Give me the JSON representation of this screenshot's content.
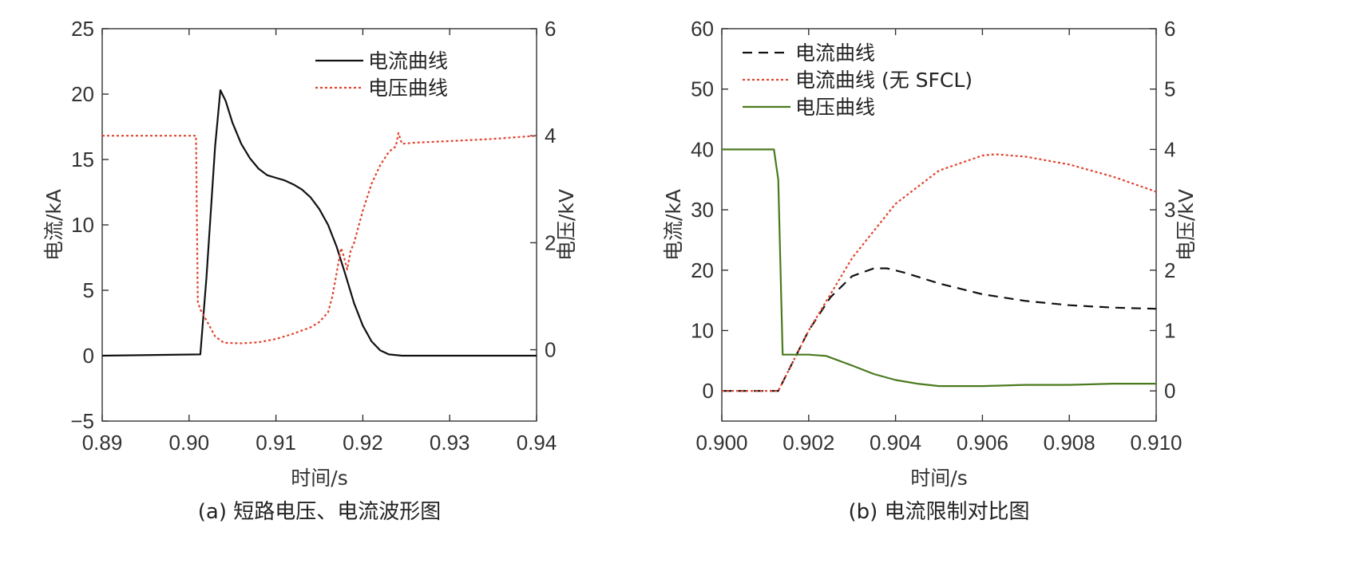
{
  "chart_data": [
    {
      "type": "line",
      "caption": "(a) 短路电压、电流波形图",
      "xlabel": "时间/s",
      "ylabel": "电流/kA",
      "y2label": "电压/kV",
      "xlim": [
        0.89,
        0.94
      ],
      "ylim": [
        -5,
        25
      ],
      "y2lim": [
        -1.333,
        6
      ],
      "xticks": [
        "0.89",
        "0.90",
        "0.91",
        "0.92",
        "0.93",
        "0.94"
      ],
      "yticks": [
        "−5",
        "0",
        "5",
        "10",
        "15",
        "20",
        "25"
      ],
      "y2ticks": [
        "0",
        "2",
        "4",
        "6"
      ],
      "legend_position": "top-right",
      "series": [
        {
          "name": "电流曲线",
          "axis": "left",
          "color": "#111111",
          "dash": "solid",
          "x": [
            0.89,
            0.9013,
            0.902,
            0.903,
            0.9036,
            0.9042,
            0.905,
            0.906,
            0.907,
            0.908,
            0.909,
            0.91,
            0.911,
            0.912,
            0.913,
            0.914,
            0.915,
            0.916,
            0.917,
            0.918,
            0.919,
            0.92,
            0.921,
            0.922,
            0.923,
            0.9245,
            0.94
          ],
          "y": [
            0,
            0.1,
            6.0,
            16.0,
            20.3,
            19.5,
            17.8,
            16.2,
            15.1,
            14.3,
            13.8,
            13.6,
            13.4,
            13.1,
            12.7,
            12.1,
            11.2,
            10.0,
            8.3,
            6.2,
            4.0,
            2.3,
            1.1,
            0.4,
            0.1,
            0,
            0
          ]
        },
        {
          "name": "电压曲线",
          "axis": "right",
          "color": "#e0452f",
          "dash": "dotted",
          "x": [
            0.89,
            0.9008,
            0.901,
            0.9013,
            0.902,
            0.903,
            0.904,
            0.906,
            0.908,
            0.91,
            0.912,
            0.914,
            0.915,
            0.916,
            0.9165,
            0.917,
            0.9175,
            0.9178,
            0.9182,
            0.9186,
            0.919,
            0.92,
            0.921,
            0.922,
            0.923,
            0.9238,
            0.9241,
            0.9245,
            0.926,
            0.93,
            0.935,
            0.94
          ],
          "y": [
            4.0,
            4.0,
            0.9,
            0.75,
            0.55,
            0.25,
            0.13,
            0.12,
            0.14,
            0.2,
            0.3,
            0.42,
            0.52,
            0.7,
            1.0,
            1.45,
            1.9,
            1.75,
            1.5,
            1.85,
            2.0,
            2.6,
            3.1,
            3.45,
            3.7,
            3.8,
            4.05,
            3.85,
            3.87,
            3.9,
            3.94,
            4.0
          ]
        }
      ]
    },
    {
      "type": "line",
      "caption": "(b) 电流限制对比图",
      "xlabel": "时间/s",
      "ylabel": "电流/kA",
      "y2label": "电压/kV",
      "xlim": [
        0.9,
        0.91
      ],
      "ylim": [
        -5,
        60
      ],
      "y2lim": [
        -0.5,
        6
      ],
      "xticks": [
        "0.900",
        "0.902",
        "0.904",
        "0.906",
        "0.908",
        "0.910"
      ],
      "yticks": [
        "0",
        "10",
        "20",
        "30",
        "40",
        "50",
        "60"
      ],
      "y2ticks": [
        "0",
        "1",
        "2",
        "3",
        "4",
        "5",
        "6"
      ],
      "legend_position": "top-left",
      "series": [
        {
          "name": "电流曲线",
          "axis": "left",
          "color": "#111111",
          "dash": "dashed",
          "x": [
            0.9,
            0.9013,
            0.902,
            0.9025,
            0.903,
            0.9035,
            0.9038,
            0.9042,
            0.905,
            0.906,
            0.907,
            0.908,
            0.909,
            0.91
          ],
          "y": [
            0,
            0,
            10.0,
            15.5,
            19.0,
            20.3,
            20.3,
            19.6,
            17.8,
            16.0,
            14.9,
            14.2,
            13.8,
            13.6
          ]
        },
        {
          "name": "电流曲线 (无 SFCL)",
          "axis": "left",
          "color": "#e0452f",
          "dash": "dotted",
          "x": [
            0.9,
            0.9013,
            0.902,
            0.903,
            0.904,
            0.905,
            0.906,
            0.9063,
            0.907,
            0.908,
            0.909,
            0.91
          ],
          "y": [
            0,
            0,
            10.0,
            22.0,
            31.0,
            36.5,
            39.0,
            39.2,
            38.8,
            37.5,
            35.5,
            33.0
          ]
        },
        {
          "name": "电压曲线",
          "axis": "right",
          "color": "#4a7a1e",
          "dash": "solid",
          "x": [
            0.9,
            0.9012,
            0.9013,
            0.9014,
            0.902,
            0.9024,
            0.903,
            0.9035,
            0.904,
            0.9045,
            0.905,
            0.906,
            0.907,
            0.908,
            0.909,
            0.91
          ],
          "y": [
            4.0,
            4.0,
            3.5,
            0.6,
            0.6,
            0.58,
            0.42,
            0.28,
            0.18,
            0.12,
            0.08,
            0.08,
            0.1,
            0.1,
            0.12,
            0.12
          ]
        }
      ]
    }
  ]
}
